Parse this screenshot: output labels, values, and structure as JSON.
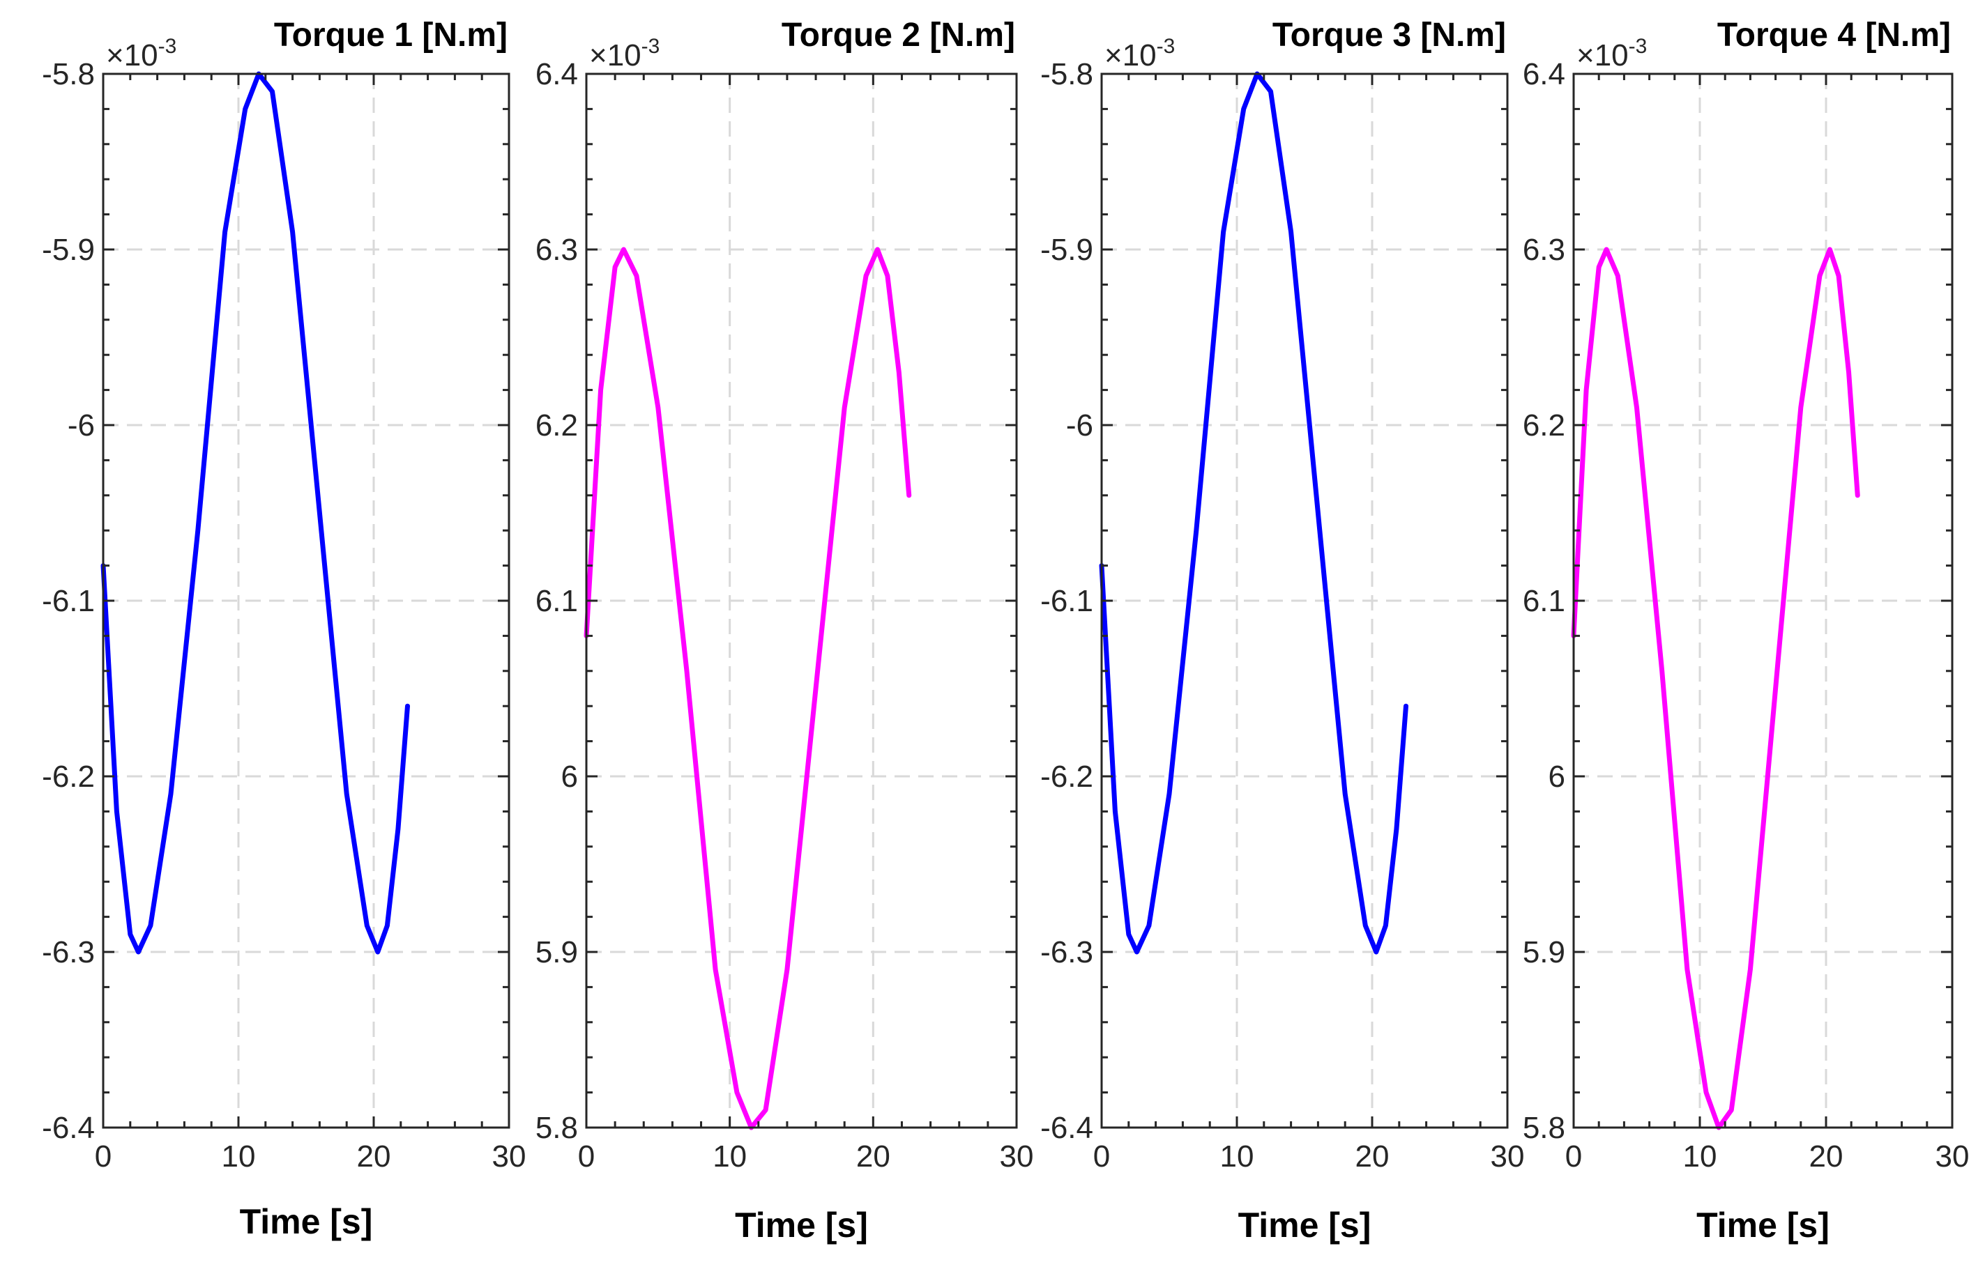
{
  "chart_data": [
    {
      "type": "line",
      "title": "Torque 1 [N.m]",
      "xlabel": "Time [s]",
      "ylabel": "",
      "exponent_label": "×10",
      "exponent": "-3",
      "xlim": [
        0,
        30
      ],
      "ylim": [
        -6.4,
        -5.8
      ],
      "xticks": [
        0,
        10,
        20,
        30
      ],
      "xtick_labels": [
        "0",
        "10",
        "20",
        "30"
      ],
      "yticks": [
        -6.4,
        -6.3,
        -6.2,
        -6.1,
        -6.0,
        -5.9,
        -5.8
      ],
      "ytick_labels": [
        "-6.4",
        "-6.3",
        "-6.2",
        "-6.1",
        "-6",
        "-5.9",
        "-5.8"
      ],
      "grid": true,
      "series": [
        {
          "name": "Torque 1",
          "color": "#0000ff",
          "x": [
            0,
            1,
            2,
            2.6,
            3.5,
            5,
            7,
            9,
            10.5,
            11.5,
            12.5,
            14,
            16,
            18,
            19.5,
            20.3,
            21,
            21.8,
            22.5
          ],
          "y": [
            -6.08,
            -6.22,
            -6.29,
            -6.3,
            -6.285,
            -6.21,
            -6.06,
            -5.89,
            -5.82,
            -5.8,
            -5.81,
            -5.89,
            -6.05,
            -6.21,
            -6.285,
            -6.3,
            -6.285,
            -6.23,
            -6.16
          ]
        }
      ]
    },
    {
      "type": "line",
      "title": "Torque 2 [N.m]",
      "xlabel": "Time [s]",
      "ylabel": "",
      "exponent_label": "×10",
      "exponent": "-3",
      "xlim": [
        0,
        30
      ],
      "ylim": [
        5.8,
        6.4
      ],
      "xticks": [
        0,
        10,
        20,
        30
      ],
      "xtick_labels": [
        "0",
        "10",
        "20",
        "30"
      ],
      "yticks": [
        5.8,
        5.9,
        6.0,
        6.1,
        6.2,
        6.3,
        6.4
      ],
      "ytick_labels": [
        "5.8",
        "5.9",
        "6",
        "6.1",
        "6.2",
        "6.3",
        "6.4"
      ],
      "grid": true,
      "series": [
        {
          "name": "Torque 2",
          "color": "#ff00ff",
          "x": [
            0,
            1,
            2,
            2.6,
            3.5,
            5,
            7,
            9,
            10.5,
            11.5,
            12.5,
            14,
            16,
            18,
            19.5,
            20.3,
            21,
            21.8,
            22.5
          ],
          "y": [
            6.08,
            6.22,
            6.29,
            6.3,
            6.285,
            6.21,
            6.06,
            5.89,
            5.82,
            5.8,
            5.81,
            5.89,
            6.05,
            6.21,
            6.285,
            6.3,
            6.285,
            6.23,
            6.16
          ]
        }
      ]
    },
    {
      "type": "line",
      "title": "Torque 3 [N.m]",
      "xlabel": "Time [s]",
      "ylabel": "",
      "exponent_label": "×10",
      "exponent": "-3",
      "xlim": [
        0,
        30
      ],
      "ylim": [
        -6.4,
        -5.8
      ],
      "xticks": [
        0,
        10,
        20,
        30
      ],
      "xtick_labels": [
        "0",
        "10",
        "20",
        "30"
      ],
      "yticks": [
        -6.4,
        -6.3,
        -6.2,
        -6.1,
        -6.0,
        -5.9,
        -5.8
      ],
      "ytick_labels": [
        "-6.4",
        "-6.3",
        "-6.2",
        "-6.1",
        "-6",
        "-5.9",
        "-5.8"
      ],
      "grid": true,
      "series": [
        {
          "name": "Torque 3",
          "color": "#0000ff",
          "x": [
            0,
            1,
            2,
            2.6,
            3.5,
            5,
            7,
            9,
            10.5,
            11.5,
            12.5,
            14,
            16,
            18,
            19.5,
            20.3,
            21,
            21.8,
            22.5
          ],
          "y": [
            -6.08,
            -6.22,
            -6.29,
            -6.3,
            -6.285,
            -6.21,
            -6.06,
            -5.89,
            -5.82,
            -5.8,
            -5.81,
            -5.89,
            -6.05,
            -6.21,
            -6.285,
            -6.3,
            -6.285,
            -6.23,
            -6.16
          ]
        }
      ]
    },
    {
      "type": "line",
      "title": "Torque 4 [N.m]",
      "xlabel": "Time [s]",
      "ylabel": "",
      "exponent_label": "×10",
      "exponent": "-3",
      "xlim": [
        0,
        30
      ],
      "ylim": [
        5.8,
        6.4
      ],
      "xticks": [
        0,
        10,
        20,
        30
      ],
      "xtick_labels": [
        "0",
        "10",
        "20",
        "30"
      ],
      "yticks": [
        5.8,
        5.9,
        6.0,
        6.1,
        6.2,
        6.3,
        6.4
      ],
      "ytick_labels": [
        "5.8",
        "5.9",
        "6",
        "6.1",
        "6.2",
        "6.3",
        "6.4"
      ],
      "grid": true,
      "series": [
        {
          "name": "Torque 4",
          "color": "#ff00ff",
          "x": [
            0,
            1,
            2,
            2.6,
            3.5,
            5,
            7,
            9,
            10.5,
            11.5,
            12.5,
            14,
            16,
            18,
            19.5,
            20.3,
            21,
            21.8,
            22.5
          ],
          "y": [
            6.08,
            6.22,
            6.29,
            6.3,
            6.285,
            6.21,
            6.06,
            5.89,
            5.82,
            5.8,
            5.81,
            5.89,
            6.05,
            6.21,
            6.285,
            6.3,
            6.285,
            6.23,
            6.16
          ]
        }
      ]
    }
  ]
}
